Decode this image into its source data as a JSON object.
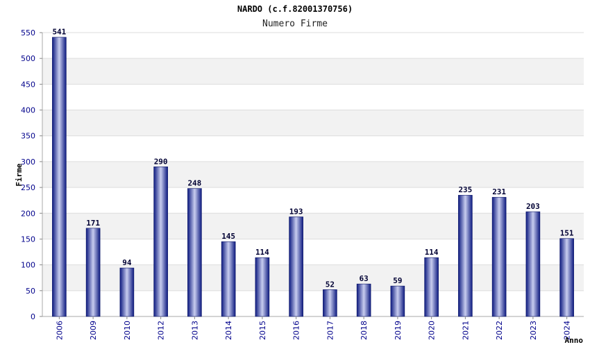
{
  "chart_data": {
    "type": "bar",
    "title": "NARDO (c.f.82001370756)",
    "subtitle": "Numero Firme",
    "xlabel": "Anno",
    "ylabel": "Firme",
    "categories": [
      "2006",
      "2009",
      "2010",
      "2012",
      "2013",
      "2014",
      "2015",
      "2016",
      "2017",
      "2018",
      "2019",
      "2020",
      "2021",
      "2022",
      "2023",
      "2024"
    ],
    "values": [
      541,
      171,
      94,
      290,
      248,
      145,
      114,
      193,
      52,
      63,
      59,
      114,
      235,
      231,
      203,
      151
    ],
    "ylim": [
      0,
      550
    ],
    "yticks": [
      0,
      50,
      100,
      150,
      200,
      250,
      300,
      350,
      400,
      450,
      500,
      550
    ],
    "grid": true,
    "legend": "none",
    "colors": {
      "bar_dark": "#1a237e",
      "bar_light": "#c5cae9",
      "tick_text": "#00008b",
      "value_text": "#000033",
      "band": "#f2f2f2",
      "grid": "#dddddd"
    }
  }
}
